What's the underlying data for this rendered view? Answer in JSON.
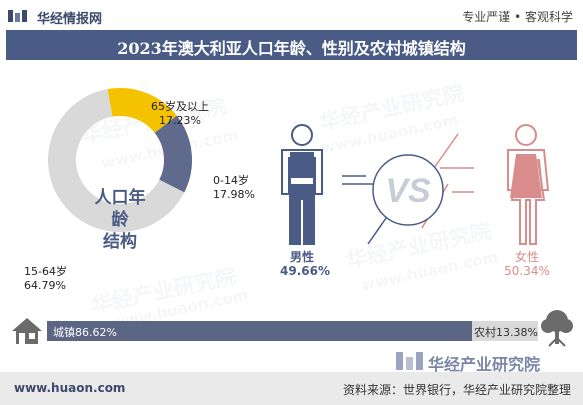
{
  "header": {
    "brand": "华经情报网",
    "slogan": "专业严谨 • 客观科学"
  },
  "title": "2023年澳大利亚人口年龄、性别及农村城镇结构",
  "chart_data": {
    "type": "pie",
    "title": "2023年澳大利亚人口年龄、性别及农村城镇结构",
    "age_structure": {
      "center_label_line1": "人口年龄",
      "center_label_line2": "结构",
      "slices": [
        {
          "name": "65岁及以上",
          "value": 17.23,
          "label": "17.23%",
          "color": "#f5c200"
        },
        {
          "name": "0-14岁",
          "value": 17.98,
          "label": "17.98%",
          "color": "#5f6a8d"
        },
        {
          "name": "15-64岁",
          "value": 64.79,
          "label": "64.79%",
          "color": "#d9d9d9"
        }
      ]
    },
    "gender_structure": {
      "vs_label": "VS",
      "male": {
        "name": "男性",
        "value": 49.66,
        "label": "49.66%",
        "color": "#4a5b86"
      },
      "female": {
        "name": "女性",
        "value": 50.34,
        "label": "50.34%",
        "color": "#d98c8c"
      }
    },
    "urban_rural_structure": {
      "urban": {
        "name": "城镇",
        "value": 86.62,
        "label": "城镇86.62%",
        "color": "#5b6584"
      },
      "rural": {
        "name": "农村",
        "value": 13.38,
        "label": "农村13.38%",
        "color": "#d9d9d9"
      }
    }
  },
  "watermark_logo": "华经产业研究院",
  "watermark_text": "华经产业研究院",
  "watermark_url": "www.huaon.com",
  "footer": {
    "site": "www.huaon.com",
    "source": "资料来源：世界银行，华经产业研究院整理"
  }
}
